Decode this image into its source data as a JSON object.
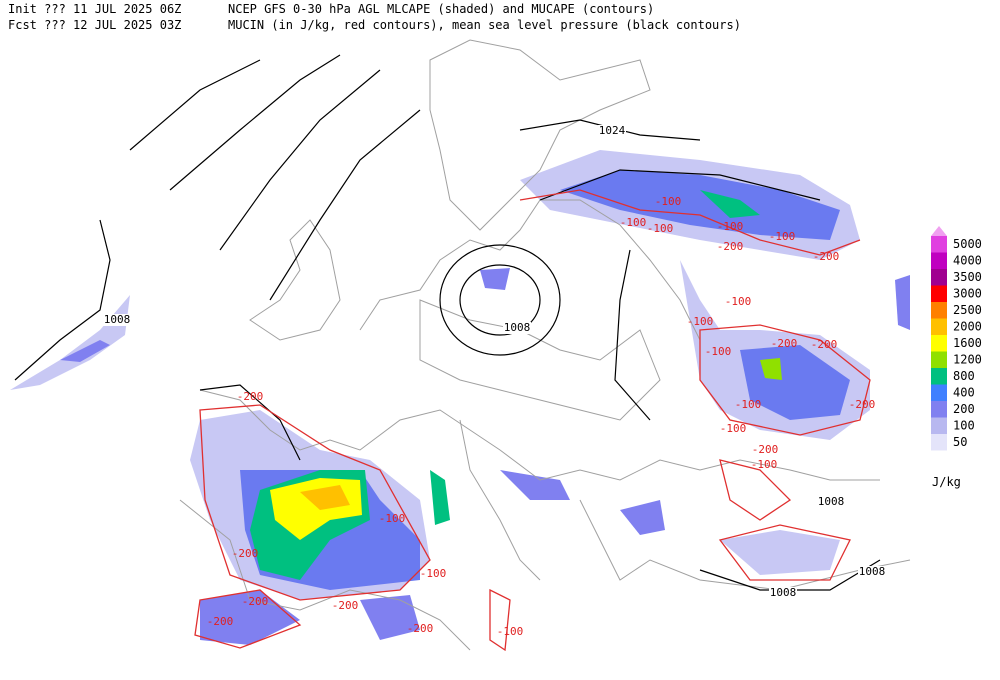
{
  "header": {
    "init": "Init  ??? 11 JUL 2025 06Z",
    "fcst": "Fcst ??? 12 JUL 2025 03Z",
    "title1": "NCEP GFS 0-30 hPa AGL MLCAPE (shaded) and MUCAPE (contours)",
    "title2": "MUCIN (in J/kg, red contours), mean sea level pressure (black contours)"
  },
  "legend": {
    "unit": "J/kg",
    "levels": [
      {
        "label": "5000",
        "color": "#e040e0"
      },
      {
        "label": "4000",
        "color": "#c000c0"
      },
      {
        "label": "3500",
        "color": "#a00090"
      },
      {
        "label": "3000",
        "color": "#ff0000"
      },
      {
        "label": "2500",
        "color": "#ff8000"
      },
      {
        "label": "2000",
        "color": "#ffc000"
      },
      {
        "label": "1600",
        "color": "#ffff00"
      },
      {
        "label": "1200",
        "color": "#90e000"
      },
      {
        "label": "800",
        "color": "#00c080"
      },
      {
        "label": "400",
        "color": "#4080ff"
      },
      {
        "label": "200",
        "color": "#8080f0"
      },
      {
        "label": "100",
        "color": "#b8b8f0"
      },
      {
        "label": "50",
        "color": "#e4e4fa"
      }
    ],
    "top_color": "#f0a0f0"
  },
  "isobar_labels": [
    "1024",
    "1008",
    "1008",
    "1008",
    "1008",
    "1008"
  ],
  "cin_labels": [
    "-100",
    "-100",
    "-100",
    "-100",
    "-200",
    "-100",
    "-200",
    "-100",
    "-100",
    "-200",
    "-200",
    "-100",
    "-100",
    "-200",
    "-100",
    "-200",
    "-100",
    "-200",
    "-200",
    "-100",
    "-100",
    "-200",
    "-200",
    "-200",
    "-100",
    "-200"
  ]
}
